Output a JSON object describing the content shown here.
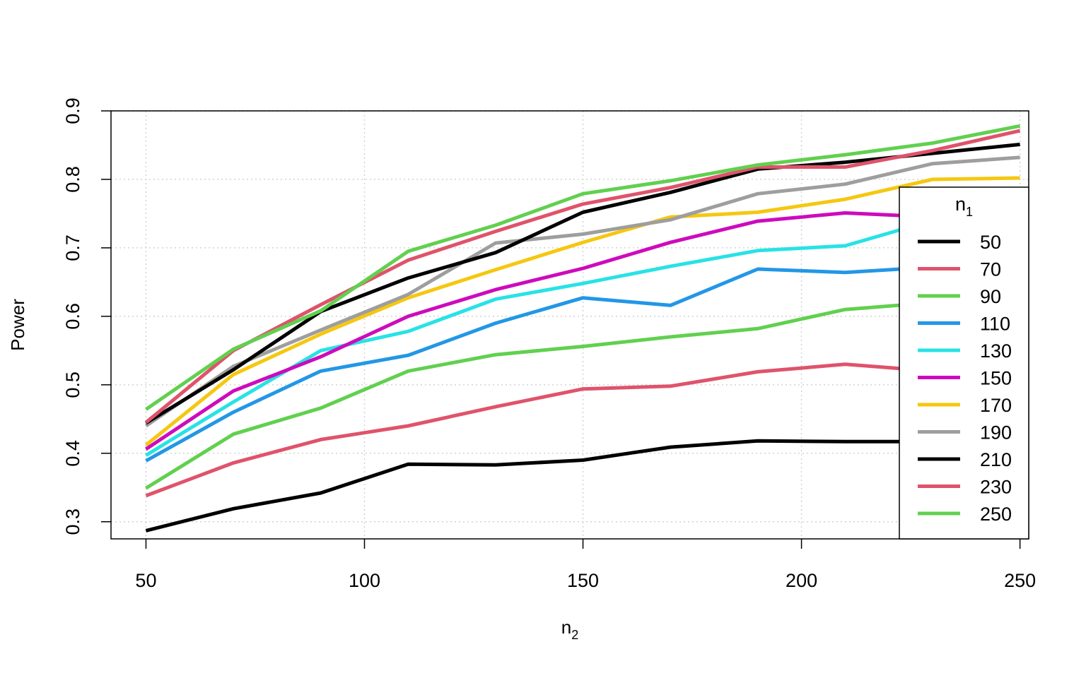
{
  "chart_data": {
    "type": "line",
    "xlabel": "n",
    "xlabel_sub": "2",
    "ylabel": "Power",
    "xlim": [
      42,
      252
    ],
    "ylim": [
      0.275,
      0.9
    ],
    "x_ticks": [
      50,
      100,
      150,
      200,
      250
    ],
    "y_ticks": [
      0.3,
      0.4,
      0.5,
      0.6,
      0.7,
      0.8,
      0.9
    ],
    "grid": true,
    "legend": {
      "title": "n",
      "title_sub": "1",
      "placement": "right"
    },
    "x": [
      50,
      70,
      90,
      110,
      130,
      150,
      170,
      190,
      210,
      230,
      250
    ],
    "series": [
      {
        "name": "50",
        "color": "#000000",
        "values": [
          0.287,
          0.319,
          0.342,
          0.384,
          0.383,
          0.39,
          0.409,
          0.418,
          0.417,
          0.417,
          0.417
        ]
      },
      {
        "name": "70",
        "color": "#DF536B",
        "values": [
          0.338,
          0.386,
          0.42,
          0.44,
          0.468,
          0.494,
          0.498,
          0.519,
          0.53,
          0.52,
          0.52
        ]
      },
      {
        "name": "90",
        "color": "#61D04F",
        "values": [
          0.349,
          0.428,
          0.466,
          0.52,
          0.544,
          0.556,
          0.57,
          0.582,
          0.61,
          0.62,
          0.63
        ]
      },
      {
        "name": "110",
        "color": "#2297E6",
        "values": [
          0.389,
          0.46,
          0.52,
          0.543,
          0.59,
          0.627,
          0.616,
          0.669,
          0.664,
          0.672,
          0.68
        ]
      },
      {
        "name": "130",
        "color": "#28E2E5",
        "values": [
          0.397,
          0.475,
          0.55,
          0.578,
          0.625,
          0.648,
          0.673,
          0.696,
          0.703,
          0.74,
          0.745
        ]
      },
      {
        "name": "150",
        "color": "#CD0BBC",
        "values": [
          0.406,
          0.491,
          0.541,
          0.6,
          0.639,
          0.67,
          0.708,
          0.739,
          0.751,
          0.745,
          0.748
        ]
      },
      {
        "name": "170",
        "color": "#F5C710",
        "values": [
          0.412,
          0.515,
          0.574,
          0.627,
          0.668,
          0.708,
          0.745,
          0.752,
          0.771,
          0.8,
          0.802
        ]
      },
      {
        "name": "190",
        "color": "#9E9E9E",
        "values": [
          0.44,
          0.527,
          0.58,
          0.632,
          0.707,
          0.72,
          0.741,
          0.779,
          0.793,
          0.823,
          0.832
        ]
      },
      {
        "name": "210",
        "color": "#000000",
        "values": [
          0.444,
          0.522,
          0.607,
          0.656,
          0.693,
          0.752,
          0.781,
          0.815,
          0.825,
          0.838,
          0.851
        ]
      },
      {
        "name": "230",
        "color": "#DF536B",
        "values": [
          0.445,
          0.55,
          0.617,
          0.682,
          0.724,
          0.764,
          0.788,
          0.818,
          0.818,
          0.842,
          0.871
        ]
      },
      {
        "name": "250",
        "color": "#61D04F",
        "values": [
          0.464,
          0.552,
          0.608,
          0.695,
          0.733,
          0.779,
          0.798,
          0.821,
          0.836,
          0.853,
          0.878
        ]
      }
    ]
  }
}
